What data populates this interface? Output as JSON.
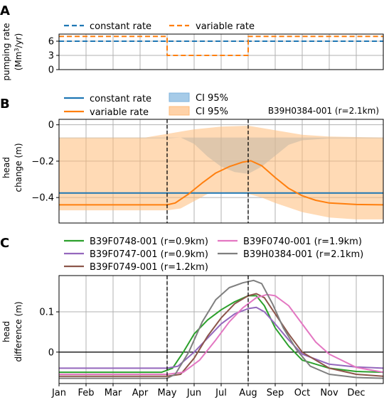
{
  "panels": {
    "a": {
      "letter": "A",
      "ylabel_line1": "pumping rate",
      "ylabel_line2_pre": "(Mm",
      "ylabel_line2_sup": "3",
      "ylabel_line2_post": "/yr)",
      "legend": {
        "constant": "constant rate",
        "variable": "variable rate"
      }
    },
    "b": {
      "letter": "B",
      "ylabel_line1": "head",
      "ylabel_line2": "change (m)",
      "legend": {
        "constant": "constant rate",
        "variable": "variable rate",
        "ci_constant": "CI 95%",
        "ci_variable": "CI 95%"
      },
      "annotation": "B39H0384-001 (r=2.1km)"
    },
    "c": {
      "letter": "C",
      "ylabel_line1": "head",
      "ylabel_line2": "difference (m)"
    }
  },
  "chart_data": [
    {
      "id": "a",
      "type": "line",
      "x_domain": [
        0,
        12
      ],
      "ylim": [
        0,
        7.5
      ],
      "yticks": [
        0,
        3,
        6
      ],
      "grid": true,
      "legend_position": "top",
      "series": [
        {
          "name": "constant rate",
          "color": "#1f77b4",
          "dashed": true,
          "points": [
            [
              0,
              6
            ],
            [
              12,
              6
            ]
          ]
        },
        {
          "name": "variable rate",
          "color": "#ff7f0e",
          "dashed": true,
          "points": [
            [
              0,
              7
            ],
            [
              4,
              7
            ],
            [
              4,
              3
            ],
            [
              7,
              3
            ],
            [
              7,
              7
            ],
            [
              12,
              7
            ]
          ]
        }
      ]
    },
    {
      "id": "b",
      "type": "line",
      "x_domain": [
        0,
        12
      ],
      "ylim": [
        -0.54,
        0.03
      ],
      "yticks": [
        0.0,
        -0.2,
        -0.4
      ],
      "grid": true,
      "legend_position": "top",
      "vlines": [
        4,
        7
      ],
      "bands": [
        {
          "name": "CI 95%",
          "color": "#7fb3dd",
          "opacity": 0.55,
          "upper": [
            [
              0,
              -0.07
            ],
            [
              12,
              -0.07
            ]
          ],
          "lower": [
            [
              0,
              -0.075
            ],
            [
              4,
              -0.075
            ],
            [
              4.5,
              -0.07
            ],
            [
              5.0,
              -0.105
            ],
            [
              5.5,
              -0.175
            ],
            [
              6.0,
              -0.23
            ],
            [
              6.5,
              -0.26
            ],
            [
              7.0,
              -0.27
            ],
            [
              7.5,
              -0.23
            ],
            [
              8.0,
              -0.17
            ],
            [
              8.5,
              -0.11
            ],
            [
              9.0,
              -0.085
            ],
            [
              10,
              -0.075
            ],
            [
              12,
              -0.075
            ]
          ]
        },
        {
          "name": "CI 95%",
          "color": "#ffbb78",
          "opacity": 0.55,
          "upper": [
            [
              0,
              -0.07
            ],
            [
              3.2,
              -0.07
            ],
            [
              4.0,
              -0.05
            ],
            [
              5.0,
              -0.025
            ],
            [
              6.0,
              -0.01
            ],
            [
              7.0,
              -0.005
            ],
            [
              8.0,
              -0.03
            ],
            [
              9.0,
              -0.055
            ],
            [
              10,
              -0.065
            ],
            [
              12,
              -0.07
            ]
          ],
          "lower": [
            [
              0,
              -0.47
            ],
            [
              4.0,
              -0.47
            ],
            [
              4.5,
              -0.46
            ],
            [
              5.0,
              -0.42
            ],
            [
              5.5,
              -0.38
            ],
            [
              6.0,
              -0.37
            ],
            [
              7.0,
              -0.38
            ],
            [
              7.5,
              -0.4
            ],
            [
              8.0,
              -0.43
            ],
            [
              9.0,
              -0.48
            ],
            [
              10,
              -0.51
            ],
            [
              11,
              -0.52
            ],
            [
              12,
              -0.52
            ]
          ]
        }
      ],
      "series": [
        {
          "name": "constant rate",
          "color": "#1f77b4",
          "points": [
            [
              0,
              -0.375
            ],
            [
              12,
              -0.375
            ]
          ]
        },
        {
          "name": "variable rate",
          "color": "#ff7f0e",
          "points": [
            [
              0,
              -0.44
            ],
            [
              4.0,
              -0.44
            ],
            [
              4.3,
              -0.43
            ],
            [
              4.8,
              -0.38
            ],
            [
              5.3,
              -0.32
            ],
            [
              5.8,
              -0.265
            ],
            [
              6.3,
              -0.23
            ],
            [
              6.8,
              -0.205
            ],
            [
              7.1,
              -0.198
            ],
            [
              7.5,
              -0.225
            ],
            [
              8.0,
              -0.29
            ],
            [
              8.5,
              -0.35
            ],
            [
              9.0,
              -0.39
            ],
            [
              9.5,
              -0.415
            ],
            [
              10,
              -0.43
            ],
            [
              11,
              -0.438
            ],
            [
              12,
              -0.44
            ]
          ]
        }
      ]
    },
    {
      "id": "c",
      "type": "line",
      "x_domain": [
        0,
        12
      ],
      "categories": [
        "Jan",
        "Feb",
        "Mar",
        "Apr",
        "May",
        "Jun",
        "Jul",
        "Aug",
        "Sep",
        "Oct",
        "Nov",
        "Dec"
      ],
      "ylim": [
        -0.078,
        0.19
      ],
      "yticks": [
        0.1,
        0.0
      ],
      "grid": true,
      "legend_position": "top",
      "vlines": [
        4,
        7
      ],
      "hline": 0,
      "series": [
        {
          "name": "B39F0748-001 (r=0.9km)",
          "color": "#2ca02c",
          "points": [
            [
              0,
              -0.05
            ],
            [
              3.8,
              -0.05
            ],
            [
              4.2,
              -0.04
            ],
            [
              4.6,
              0.0
            ],
            [
              5.0,
              0.045
            ],
            [
              5.5,
              0.08
            ],
            [
              6.0,
              0.105
            ],
            [
              6.5,
              0.125
            ],
            [
              7.0,
              0.14
            ],
            [
              7.3,
              0.14
            ],
            [
              7.6,
              0.115
            ],
            [
              8.0,
              0.06
            ],
            [
              8.5,
              0.015
            ],
            [
              9.0,
              -0.02
            ],
            [
              10,
              -0.04
            ],
            [
              11,
              -0.048
            ],
            [
              12,
              -0.05
            ]
          ]
        },
        {
          "name": "B39F0747-001 (r=0.9km)",
          "color": "#9467bd",
          "points": [
            [
              0,
              -0.04
            ],
            [
              4.0,
              -0.04
            ],
            [
              4.4,
              -0.035
            ],
            [
              5.0,
              0.0
            ],
            [
              5.5,
              0.035
            ],
            [
              6.0,
              0.07
            ],
            [
              6.5,
              0.095
            ],
            [
              7.0,
              0.108
            ],
            [
              7.3,
              0.111
            ],
            [
              7.6,
              0.1
            ],
            [
              8.0,
              0.07
            ],
            [
              8.5,
              0.03
            ],
            [
              9.0,
              -0.005
            ],
            [
              10,
              -0.03
            ],
            [
              11,
              -0.037
            ],
            [
              12,
              -0.04
            ]
          ]
        },
        {
          "name": "B39F0749-001 (r=1.2km)",
          "color": "#8c564b",
          "points": [
            [
              0,
              -0.06
            ],
            [
              4.0,
              -0.06
            ],
            [
              4.5,
              -0.055
            ],
            [
              5.0,
              -0.015
            ],
            [
              5.5,
              0.04
            ],
            [
              6.0,
              0.085
            ],
            [
              6.5,
              0.12
            ],
            [
              7.0,
              0.14
            ],
            [
              7.3,
              0.145
            ],
            [
              7.6,
              0.135
            ],
            [
              8.0,
              0.095
            ],
            [
              8.5,
              0.045
            ],
            [
              9.0,
              0.0
            ],
            [
              10,
              -0.04
            ],
            [
              11,
              -0.055
            ],
            [
              12,
              -0.06
            ]
          ]
        },
        {
          "name": "B39F0740-001 (r=1.9km)",
          "color": "#e377c2",
          "points": [
            [
              0,
              -0.055
            ],
            [
              4.0,
              -0.055
            ],
            [
              4.6,
              -0.05
            ],
            [
              5.2,
              -0.02
            ],
            [
              5.8,
              0.03
            ],
            [
              6.3,
              0.075
            ],
            [
              6.8,
              0.11
            ],
            [
              7.3,
              0.135
            ],
            [
              7.7,
              0.143
            ],
            [
              8.0,
              0.14
            ],
            [
              8.5,
              0.115
            ],
            [
              9.0,
              0.07
            ],
            [
              9.5,
              0.025
            ],
            [
              10,
              -0.005
            ],
            [
              11,
              -0.038
            ],
            [
              12,
              -0.05
            ]
          ]
        },
        {
          "name": "B39H0384-001 (r=2.1km)",
          "color": "#7f7f7f",
          "points": [
            [
              0,
              -0.065
            ],
            [
              4.0,
              -0.065
            ],
            [
              4.3,
              -0.055
            ],
            [
              4.8,
              0.0
            ],
            [
              5.3,
              0.075
            ],
            [
              5.8,
              0.13
            ],
            [
              6.3,
              0.16
            ],
            [
              6.8,
              0.172
            ],
            [
              7.2,
              0.178
            ],
            [
              7.5,
              0.17
            ],
            [
              7.9,
              0.12
            ],
            [
              8.3,
              0.06
            ],
            [
              8.8,
              0.005
            ],
            [
              9.3,
              -0.035
            ],
            [
              10,
              -0.055
            ],
            [
              11,
              -0.063
            ],
            [
              12,
              -0.065
            ]
          ]
        }
      ]
    }
  ]
}
